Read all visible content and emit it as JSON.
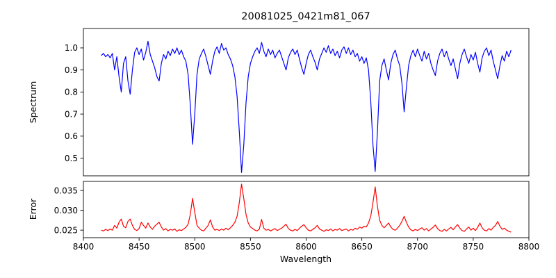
{
  "chart_data": {
    "type": "line",
    "title": "20081025_0421m81_067",
    "xlabel": "Wavelength",
    "grid": false,
    "legend": "none",
    "xlim": [
      8400,
      8800
    ],
    "xticks": [
      8400,
      8450,
      8500,
      8550,
      8600,
      8650,
      8700,
      8750,
      8800
    ],
    "xtick_labels": [
      "8400",
      "8450",
      "8500",
      "8550",
      "8600",
      "8650",
      "8700",
      "8750",
      "8800"
    ],
    "panels": [
      {
        "ylabel": "Spectrum",
        "ylim": [
          0.42,
          1.088
        ],
        "ytick_values": [
          0.5,
          0.6,
          0.7,
          0.8,
          0.9,
          1.0
        ],
        "ytick_labels": [
          "0.5",
          "0.6",
          "0.7",
          "0.8",
          "0.9",
          "1.0"
        ]
      },
      {
        "ylabel": "Error",
        "ylim": [
          0.0231,
          0.0373
        ],
        "ytick_values": [
          0.025,
          0.03,
          0.035
        ],
        "ytick_labels": [
          "0.025",
          "0.030",
          "0.035"
        ]
      }
    ],
    "x": [
      8416,
      8418,
      8420,
      8422,
      8424,
      8426,
      8428,
      8430,
      8432,
      8434,
      8436,
      8438,
      8440,
      8442,
      8444,
      8446,
      8448,
      8450,
      8452,
      8454,
      8456,
      8458,
      8460,
      8462,
      8464,
      8466,
      8468,
      8470,
      8472,
      8474,
      8476,
      8478,
      8480,
      8482,
      8484,
      8486,
      8488,
      8490,
      8492,
      8494,
      8496,
      8498,
      8500,
      8502,
      8504,
      8506,
      8508,
      8510,
      8512,
      8514,
      8516,
      8518,
      8520,
      8522,
      8524,
      8526,
      8528,
      8530,
      8532,
      8534,
      8536,
      8538,
      8540,
      8542,
      8544,
      8546,
      8548,
      8550,
      8552,
      8554,
      8556,
      8558,
      8560,
      8562,
      8564,
      8566,
      8568,
      8570,
      8572,
      8574,
      8576,
      8578,
      8580,
      8582,
      8584,
      8586,
      8588,
      8590,
      8592,
      8594,
      8596,
      8598,
      8600,
      8602,
      8604,
      8606,
      8608,
      8610,
      8612,
      8614,
      8616,
      8618,
      8620,
      8622,
      8624,
      8626,
      8628,
      8630,
      8632,
      8634,
      8636,
      8638,
      8640,
      8642,
      8644,
      8646,
      8648,
      8650,
      8652,
      8654,
      8656,
      8658,
      8660,
      8662,
      8664,
      8666,
      8668,
      8670,
      8672,
      8674,
      8676,
      8678,
      8680,
      8682,
      8684,
      8686,
      8688,
      8690,
      8692,
      8694,
      8696,
      8698,
      8700,
      8702,
      8704,
      8706,
      8708,
      8710,
      8712,
      8714,
      8716,
      8718,
      8720,
      8722,
      8724,
      8726,
      8728,
      8730,
      8732,
      8734,
      8736,
      8738,
      8740,
      8742,
      8744,
      8746,
      8748,
      8750,
      8752,
      8754,
      8756,
      8758,
      8760,
      8762,
      8764,
      8766,
      8768,
      8770,
      8772,
      8774,
      8776,
      8778,
      8780,
      8782,
      8784
    ],
    "series": [
      {
        "name": "Spectrum",
        "panel": 0,
        "color": "#0000ff",
        "values": [
          0.965,
          0.975,
          0.96,
          0.97,
          0.955,
          0.975,
          0.9,
          0.96,
          0.87,
          0.8,
          0.93,
          0.96,
          0.85,
          0.79,
          0.9,
          0.98,
          1.0,
          0.97,
          0.995,
          0.945,
          0.98,
          1.03,
          0.97,
          0.94,
          0.91,
          0.87,
          0.85,
          0.93,
          0.97,
          0.95,
          0.985,
          0.965,
          0.995,
          0.975,
          1.0,
          0.97,
          0.99,
          0.96,
          0.94,
          0.88,
          0.74,
          0.563,
          0.7,
          0.88,
          0.95,
          0.975,
          0.995,
          0.96,
          0.92,
          0.88,
          0.94,
          0.985,
          1.005,
          0.975,
          1.02,
          0.99,
          1.0,
          0.97,
          0.95,
          0.92,
          0.87,
          0.78,
          0.62,
          0.435,
          0.56,
          0.75,
          0.87,
          0.93,
          0.96,
          0.985,
          1.0,
          0.975,
          1.025,
          0.985,
          0.96,
          0.995,
          0.97,
          0.99,
          0.955,
          0.975,
          0.99,
          0.96,
          0.93,
          0.9,
          0.955,
          0.98,
          0.995,
          0.97,
          0.99,
          0.95,
          0.91,
          0.88,
          0.93,
          0.97,
          0.99,
          0.96,
          0.935,
          0.9,
          0.95,
          0.975,
          1.0,
          0.98,
          1.01,
          0.975,
          0.995,
          0.965,
          0.985,
          0.955,
          0.99,
          1.005,
          0.975,
          1.0,
          0.97,
          0.99,
          0.96,
          0.975,
          0.94,
          0.96,
          0.93,
          0.955,
          0.9,
          0.76,
          0.56,
          0.44,
          0.62,
          0.85,
          0.92,
          0.95,
          0.9,
          0.855,
          0.93,
          0.97,
          0.99,
          0.95,
          0.92,
          0.84,
          0.71,
          0.82,
          0.92,
          0.965,
          0.99,
          0.96,
          0.995,
          0.965,
          0.94,
          0.985,
          0.95,
          0.975,
          0.93,
          0.9,
          0.875,
          0.94,
          0.975,
          0.995,
          0.96,
          0.985,
          0.95,
          0.92,
          0.95,
          0.905,
          0.86,
          0.93,
          0.97,
          0.995,
          0.96,
          0.93,
          0.97,
          0.945,
          0.98,
          0.93,
          0.89,
          0.955,
          0.985,
          1.0,
          0.965,
          0.99,
          0.94,
          0.9,
          0.86,
          0.92,
          0.965,
          0.94,
          0.985,
          0.96,
          0.99
        ]
      },
      {
        "name": "Error",
        "panel": 1,
        "color": "#ff0000",
        "values": [
          0.025,
          0.0248,
          0.0252,
          0.0249,
          0.0253,
          0.025,
          0.0262,
          0.0255,
          0.027,
          0.0278,
          0.026,
          0.0256,
          0.0272,
          0.0278,
          0.0262,
          0.0252,
          0.0249,
          0.0254,
          0.027,
          0.0262,
          0.0255,
          0.0268,
          0.0258,
          0.0252,
          0.026,
          0.0265,
          0.027,
          0.0258,
          0.025,
          0.0254,
          0.0248,
          0.0252,
          0.025,
          0.0253,
          0.0247,
          0.0251,
          0.0249,
          0.0253,
          0.0257,
          0.0265,
          0.029,
          0.033,
          0.0295,
          0.0262,
          0.0255,
          0.025,
          0.0248,
          0.0255,
          0.0262,
          0.0276,
          0.0258,
          0.025,
          0.0252,
          0.0249,
          0.0253,
          0.025,
          0.0255,
          0.0251,
          0.0256,
          0.0262,
          0.027,
          0.0285,
          0.032,
          0.0366,
          0.033,
          0.029,
          0.0268,
          0.0258,
          0.0254,
          0.025,
          0.0248,
          0.0253,
          0.0277,
          0.0255,
          0.025,
          0.0252,
          0.0248,
          0.0251,
          0.0254,
          0.0249,
          0.0252,
          0.0255,
          0.026,
          0.0265,
          0.0254,
          0.025,
          0.0248,
          0.0252,
          0.0249,
          0.0255,
          0.026,
          0.0264,
          0.0256,
          0.025,
          0.0248,
          0.0252,
          0.0256,
          0.0262,
          0.0253,
          0.025,
          0.0247,
          0.0251,
          0.0249,
          0.0253,
          0.0248,
          0.0252,
          0.025,
          0.0254,
          0.0249,
          0.0251,
          0.0253,
          0.0248,
          0.0252,
          0.025,
          0.0255,
          0.0252,
          0.0258,
          0.0255,
          0.026,
          0.0258,
          0.0268,
          0.0285,
          0.032,
          0.0359,
          0.031,
          0.0275,
          0.0262,
          0.0256,
          0.0262,
          0.0268,
          0.0258,
          0.0252,
          0.025,
          0.0255,
          0.0262,
          0.0272,
          0.0285,
          0.027,
          0.0258,
          0.0251,
          0.0248,
          0.0252,
          0.0249,
          0.0253,
          0.0256,
          0.025,
          0.0254,
          0.0248,
          0.0253,
          0.0257,
          0.0263,
          0.0254,
          0.0249,
          0.0247,
          0.0252,
          0.0248,
          0.0253,
          0.0257,
          0.0251,
          0.0258,
          0.0264,
          0.0255,
          0.0249,
          0.0247,
          0.0253,
          0.0258,
          0.025,
          0.0255,
          0.0249,
          0.0257,
          0.0268,
          0.0256,
          0.025,
          0.0248,
          0.0254,
          0.025,
          0.0257,
          0.0262,
          0.0272,
          0.026,
          0.0252,
          0.0255,
          0.025,
          0.0247,
          0.0245
        ]
      }
    ]
  }
}
